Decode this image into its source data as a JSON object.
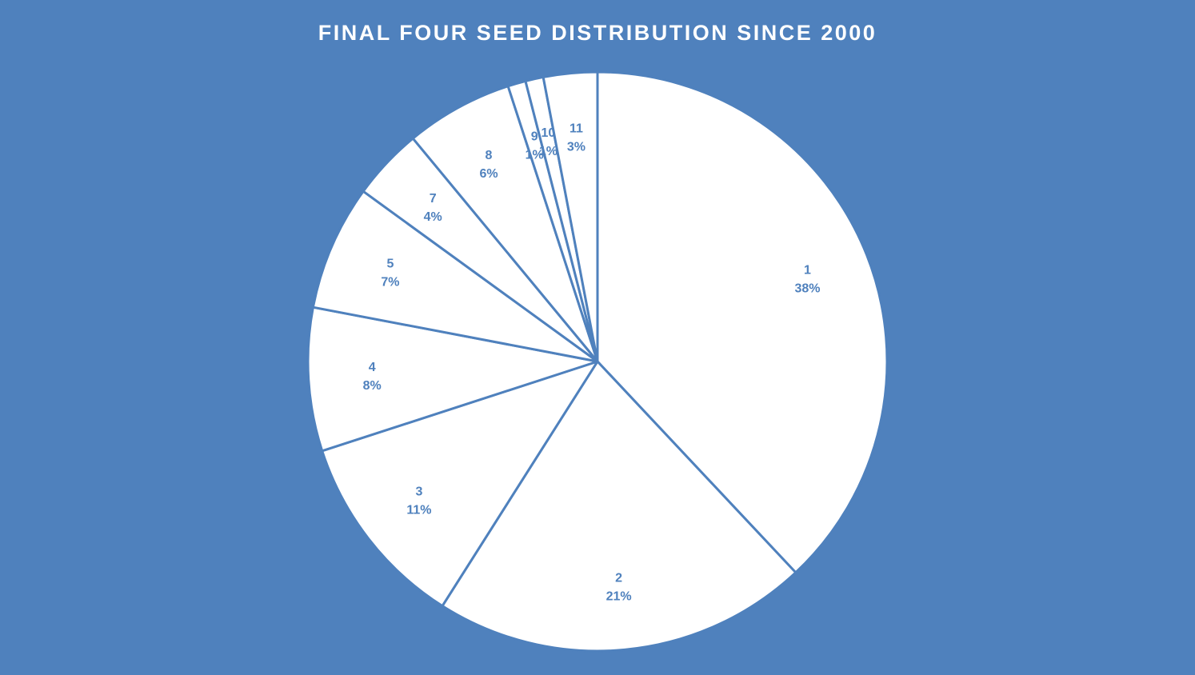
{
  "chart_data": {
    "type": "pie",
    "title": "FINAL FOUR SEED DISTRIBUTION SINCE 2000",
    "categories": [
      "1",
      "2",
      "3",
      "4",
      "5",
      "7",
      "8",
      "9",
      "10",
      "11"
    ],
    "values": [
      38,
      21,
      11,
      8,
      7,
      4,
      6,
      1,
      1,
      3
    ],
    "labels": [
      "38%",
      "21%",
      "11%",
      "8%",
      "7%",
      "4%",
      "6%",
      "1%",
      "1%",
      "3%"
    ],
    "start_angle": "12 o'clock",
    "direction": "clockwise",
    "legend": "none",
    "colors": {
      "background": "#4f81bd",
      "slice_fill": "#ffffff",
      "slice_border": "#4f81bd",
      "label_text": "#4f81bd",
      "title_text": "#ffffff"
    }
  }
}
